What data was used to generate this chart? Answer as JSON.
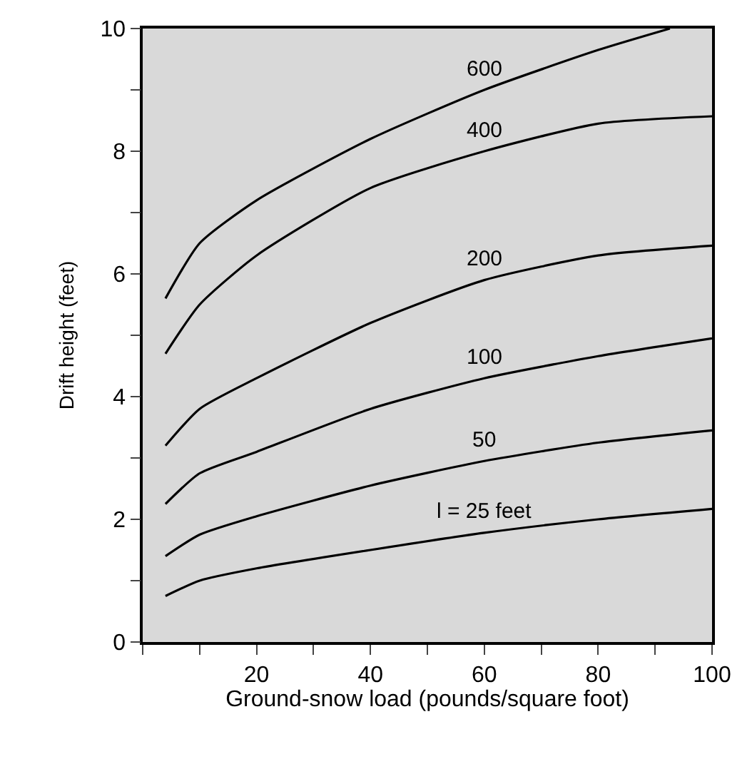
{
  "chart_data": {
    "type": "line",
    "xlabel": "Ground-snow load (pounds/square foot)",
    "ylabel": "Drift height (feet)",
    "xlim": [
      0,
      100
    ],
    "ylim": [
      0,
      10
    ],
    "xticks": [
      {
        "value": 0,
        "label": null
      },
      {
        "value": 10,
        "label": null
      },
      20,
      {
        "value": 30,
        "label": null
      },
      40,
      {
        "value": 50,
        "label": null
      },
      60,
      {
        "value": 70,
        "label": null
      },
      80,
      {
        "value": 90,
        "label": null
      },
      100
    ],
    "yticks": [
      0,
      {
        "value": 1,
        "label": null
      },
      2,
      {
        "value": 3,
        "label": null
      },
      4,
      {
        "value": 5,
        "label": null
      },
      6,
      {
        "value": 7,
        "label": null
      },
      8,
      {
        "value": 9,
        "label": null
      },
      10
    ],
    "grid": false,
    "legend": false,
    "marker": "none",
    "line_style": "solid",
    "series": [
      {
        "name": "600",
        "color": "#000000",
        "x": [
          4,
          10,
          20,
          40,
          60,
          80,
          92.6
        ],
        "values": [
          5.6,
          6.5,
          7.2,
          8.2,
          9.0,
          9.65,
          10
        ]
      },
      {
        "name": "400",
        "color": "#000000",
        "x": [
          4,
          10,
          20,
          40,
          60,
          80,
          100
        ],
        "values": [
          4.7,
          5.5,
          6.3,
          7.4,
          8.0,
          8.45,
          8.57
        ]
      },
      {
        "name": "200",
        "color": "#000000",
        "x": [
          4,
          10,
          20,
          40,
          60,
          80,
          100
        ],
        "values": [
          3.2,
          3.8,
          4.3,
          5.2,
          5.9,
          6.3,
          6.46
        ]
      },
      {
        "name": "100",
        "color": "#000000",
        "x": [
          4,
          10,
          20,
          40,
          60,
          80,
          100
        ],
        "values": [
          2.25,
          2.75,
          3.1,
          3.8,
          4.3,
          4.66,
          4.95
        ]
      },
      {
        "name": "50",
        "color": "#000000",
        "x": [
          4,
          10,
          20,
          40,
          60,
          80,
          100
        ],
        "values": [
          1.4,
          1.75,
          2.05,
          2.55,
          2.95,
          3.25,
          3.45
        ]
      },
      {
        "name": "l = 25 feet",
        "color": "#000000",
        "x": [
          4,
          10,
          20,
          40,
          60,
          80,
          100
        ],
        "values": [
          0.75,
          1.0,
          1.2,
          1.5,
          1.78,
          2.0,
          2.17
        ]
      }
    ]
  }
}
